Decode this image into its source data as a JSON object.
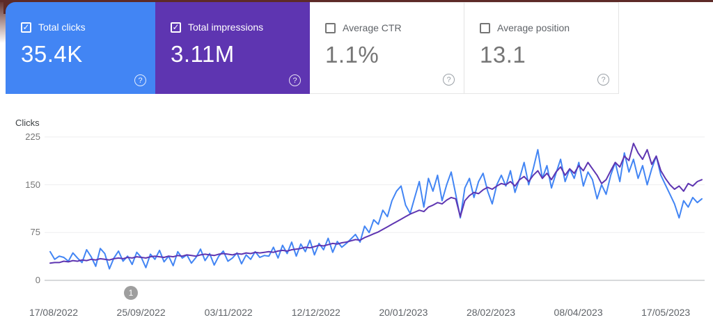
{
  "icons": {
    "check": "✓",
    "help": "?"
  },
  "colors": {
    "clicks_blue": "#4285f4",
    "impressions_purple": "#5e35b1",
    "accent_dark_corner": "#5d2a27",
    "gridline": "#ededef",
    "axis_line": "#d7d9db",
    "badge_gray": "#9e9e9e"
  },
  "cards": [
    {
      "label": "Total clicks",
      "value": "35.4K",
      "checked": true
    },
    {
      "label": "Total impressions",
      "value": "3.11M",
      "checked": true
    },
    {
      "label": "Average CTR",
      "value": "1.1%",
      "checked": false
    },
    {
      "label": "Average position",
      "value": "13.1",
      "checked": false
    }
  ],
  "chart_data": {
    "type": "line",
    "title": "",
    "ylabel": "Clicks",
    "yticks": [
      0,
      75,
      150,
      225
    ],
    "ylim": [
      0,
      225
    ],
    "grid": true,
    "legend": "none",
    "x_tick_labels": [
      "17/08/2022",
      "25/09/2022",
      "03/11/2022",
      "12/12/2022",
      "20/01/2023",
      "28/02/2023",
      "08/04/2023",
      "17/05/2023"
    ],
    "annotation_badge": {
      "label": "1"
    },
    "series": [
      {
        "name": "Total clicks",
        "color": "#4285f4",
        "values": [
          45,
          33,
          38,
          36,
          30,
          43,
          35,
          28,
          48,
          37,
          22,
          50,
          42,
          18,
          35,
          46,
          30,
          38,
          25,
          44,
          36,
          20,
          41,
          33,
          47,
          29,
          38,
          23,
          45,
          35,
          40,
          27,
          36,
          49,
          31,
          42,
          24,
          38,
          46,
          30,
          35,
          43,
          26,
          40,
          33,
          45,
          36,
          39,
          38,
          52,
          35,
          55,
          42,
          60,
          38,
          57,
          45,
          63,
          40,
          58,
          48,
          66,
          44,
          61,
          52,
          58,
          65,
          72,
          60,
          85,
          75,
          95,
          88,
          110,
          100,
          125,
          140,
          148,
          118,
          105,
          130,
          155,
          115,
          160,
          140,
          165,
          125,
          150,
          170,
          135,
          98,
          145,
          160,
          130,
          155,
          168,
          140,
          120,
          150,
          165,
          148,
          172,
          138,
          160,
          185,
          150,
          175,
          205,
          160,
          180,
          145,
          168,
          190,
          155,
          175,
          160,
          185,
          148,
          170,
          158,
          128,
          150,
          135,
          165,
          185,
          155,
          200,
          170,
          190,
          160,
          180,
          150,
          175,
          195,
          165,
          150,
          135,
          120,
          98,
          125,
          115,
          130,
          122,
          128
        ]
      },
      {
        "name": "Total impressions (scaled)",
        "color": "#5e35b1",
        "values": [
          27,
          28,
          28,
          30,
          29,
          31,
          30,
          32,
          31,
          33,
          32,
          34,
          33,
          32,
          34,
          35,
          34,
          36,
          35,
          37,
          36,
          35,
          37,
          38,
          37,
          36,
          38,
          37,
          39,
          38,
          40,
          39,
          38,
          40,
          41,
          40,
          39,
          41,
          42,
          41,
          40,
          42,
          41,
          43,
          42,
          44,
          43,
          44,
          45,
          44,
          46,
          47,
          46,
          48,
          49,
          50,
          52,
          51,
          53,
          55,
          54,
          56,
          58,
          57,
          59,
          60,
          62,
          64,
          63,
          67,
          70,
          73,
          76,
          80,
          84,
          88,
          92,
          96,
          100,
          104,
          107,
          110,
          108,
          115,
          118,
          122,
          120,
          126,
          130,
          128,
          100,
          125,
          133,
          138,
          136,
          142,
          146,
          143,
          148,
          152,
          150,
          155,
          148,
          158,
          163,
          155,
          165,
          172,
          160,
          168,
          158,
          170,
          178,
          165,
          175,
          168,
          180,
          172,
          185,
          175,
          165,
          152,
          158,
          172,
          185,
          178,
          195,
          188,
          215,
          200,
          190,
          205,
          182,
          195,
          172,
          160,
          150,
          143,
          148,
          140,
          152,
          148,
          155,
          158
        ]
      }
    ]
  }
}
